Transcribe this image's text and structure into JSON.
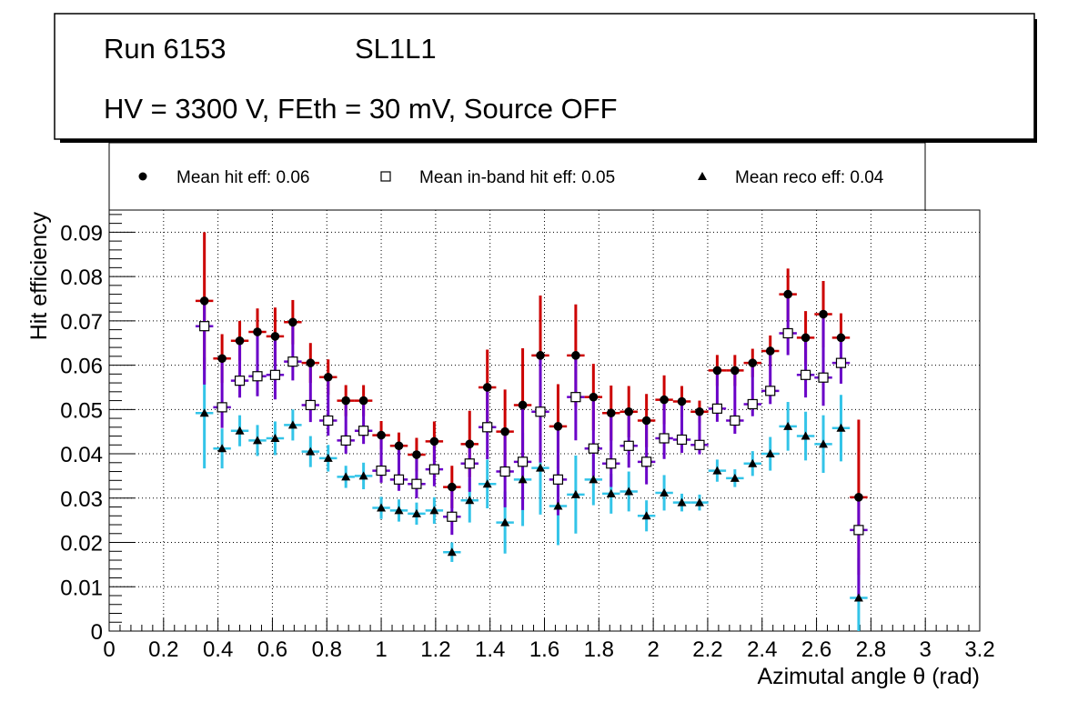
{
  "header": {
    "run": "Run 6153",
    "layer": "SL1L1",
    "conditions": "HV = 3300 V, FEth = 30 mV, Source OFF"
  },
  "legend": {
    "hit": "Mean hit  eff: 0.06",
    "inband": "Mean in-band hit eff: 0.05",
    "reco": "Mean reco eff: 0.04"
  },
  "colors": {
    "hit_err": "#cc0000",
    "inband_err": "#6a00c8",
    "reco_err": "#33c4e8",
    "marker": "#000000"
  },
  "chart_data": {
    "type": "scatter",
    "xlabel": "Azimutal angle θ (rad)",
    "ylabel": "Hit efficiency",
    "xlim": [
      0,
      3.2
    ],
    "ylim": [
      0,
      0.095
    ],
    "grid": true,
    "legend_position": "top",
    "xticks": [
      0,
      0.2,
      0.4,
      0.6,
      0.8,
      1,
      1.2,
      1.4,
      1.6,
      1.8,
      2,
      2.2,
      2.4,
      2.6,
      2.8,
      3,
      3.2
    ],
    "xtick_labels": [
      "0",
      "0.2",
      "0.4",
      "0.6",
      "0.8",
      "1",
      "1.2",
      "1.4",
      "1.6",
      "1.8",
      "2",
      "2.2",
      "2.4",
      "2.6",
      "2.8",
      "3",
      "3.2"
    ],
    "yticks": [
      0,
      0.01,
      0.02,
      0.03,
      0.04,
      0.05,
      0.06,
      0.07,
      0.08,
      0.09
    ],
    "ytick_labels": [
      "0",
      "0.01",
      "0.02",
      "0.03",
      "0.04",
      "0.05",
      "0.06",
      "0.07",
      "0.08",
      "0.09"
    ],
    "x": [
      0.35,
      0.415,
      0.48,
      0.545,
      0.61,
      0.675,
      0.74,
      0.805,
      0.87,
      0.935,
      1.0,
      1.065,
      1.13,
      1.195,
      1.26,
      1.325,
      1.39,
      1.455,
      1.52,
      1.585,
      1.65,
      1.715,
      1.78,
      1.845,
      1.91,
      1.975,
      2.04,
      2.105,
      2.17,
      2.235,
      2.3,
      2.365,
      2.43,
      2.495,
      2.56,
      2.625,
      2.69,
      2.755
    ],
    "x_half_width": 0.0325,
    "series": [
      {
        "name": "Mean hit  eff: 0.06",
        "marker": "filled-circle",
        "error_color": "#cc0000",
        "values": [
          0.0745,
          0.0615,
          0.0655,
          0.0675,
          0.0665,
          0.0697,
          0.0605,
          0.0573,
          0.052,
          0.052,
          0.0442,
          0.0418,
          0.0398,
          0.0428,
          0.0325,
          0.0422,
          0.055,
          0.045,
          0.051,
          0.0622,
          0.0462,
          0.0622,
          0.0528,
          0.0492,
          0.0495,
          0.0475,
          0.0522,
          0.0518,
          0.0495,
          0.0588,
          0.0588,
          0.0605,
          0.0632,
          0.076,
          0.0662,
          0.0715,
          0.0662,
          0.0302
        ],
        "errors": [
          0.0155,
          0.0055,
          0.0045,
          0.0053,
          0.0065,
          0.005,
          0.0045,
          0.004,
          0.0035,
          0.0035,
          0.0032,
          0.003,
          0.0038,
          0.0045,
          0.0048,
          0.0075,
          0.0085,
          0.0095,
          0.0128,
          0.0135,
          0.0095,
          0.0115,
          0.0075,
          0.0062,
          0.0058,
          0.006,
          0.0055,
          0.0035,
          0.0025,
          0.0035,
          0.0035,
          0.0032,
          0.0035,
          0.0058,
          0.006,
          0.0075,
          0.0055,
          0.0175
        ]
      },
      {
        "name": "Mean in-band hit eff: 0.05",
        "marker": "open-square",
        "error_color": "#6a00c8",
        "values": [
          0.0688,
          0.0505,
          0.0565,
          0.0575,
          0.0578,
          0.0608,
          0.051,
          0.0475,
          0.043,
          0.0452,
          0.0362,
          0.0342,
          0.0332,
          0.0365,
          0.0258,
          0.0378,
          0.046,
          0.036,
          0.0382,
          0.0495,
          0.0342,
          0.0528,
          0.0412,
          0.0378,
          0.0418,
          0.0382,
          0.0435,
          0.0432,
          0.042,
          0.0502,
          0.0475,
          0.0512,
          0.0542,
          0.0672,
          0.0578,
          0.0572,
          0.0605,
          0.0228
        ]
      },
      {
        "name": "Mean reco eff: 0.04",
        "marker": "filled-triangle",
        "error_color": "#33c4e8",
        "values": [
          0.0492,
          0.0412,
          0.0452,
          0.043,
          0.0435,
          0.0465,
          0.0405,
          0.039,
          0.0348,
          0.035,
          0.0278,
          0.0272,
          0.0265,
          0.0272,
          0.0178,
          0.0295,
          0.0332,
          0.0245,
          0.0342,
          0.0368,
          0.0282,
          0.0308,
          0.0342,
          0.031,
          0.0315,
          0.026,
          0.0312,
          0.029,
          0.029,
          0.0362,
          0.0345,
          0.0378,
          0.04,
          0.0462,
          0.044,
          0.0422,
          0.0458,
          0.0075
        ],
        "errors": [
          0.0125,
          0.0045,
          0.0035,
          0.0035,
          0.0038,
          0.0035,
          0.0035,
          0.003,
          0.0025,
          0.003,
          0.0025,
          0.0025,
          0.0025,
          0.003,
          0.0022,
          0.005,
          0.0055,
          0.007,
          0.0105,
          0.0105,
          0.0088,
          0.0088,
          0.0058,
          0.0045,
          0.0045,
          0.0035,
          0.004,
          0.002,
          0.0018,
          0.0025,
          0.002,
          0.0028,
          0.0038,
          0.0055,
          0.0055,
          0.0065,
          0.0075,
          0.009
        ]
      }
    ]
  }
}
